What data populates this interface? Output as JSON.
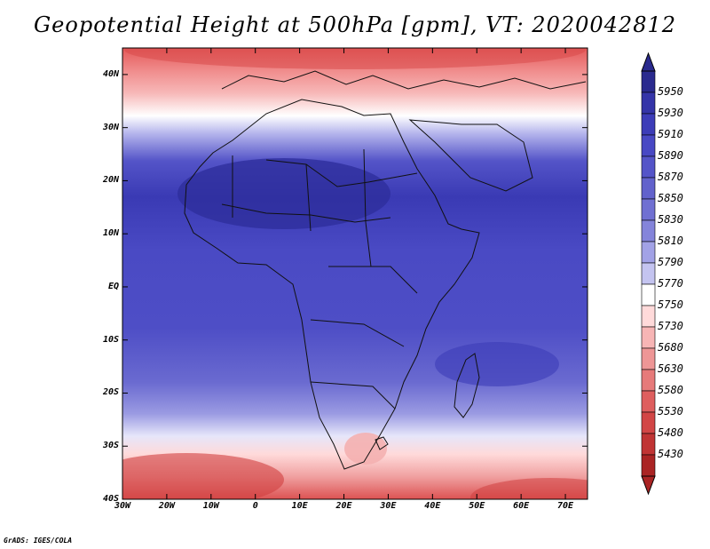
{
  "title": "Geopotential Height at 500hPa [gpm], VT: 2020042812",
  "credit": "GrADS: IGES/COLA",
  "map": {
    "lon_range": [
      -30,
      75
    ],
    "lat_range": [
      -40,
      45
    ],
    "lat_ticks": [
      {
        "value": 40,
        "label": "40N"
      },
      {
        "value": 30,
        "label": "30N"
      },
      {
        "value": 20,
        "label": "20N"
      },
      {
        "value": 10,
        "label": "10N"
      },
      {
        "value": 0,
        "label": "EQ"
      },
      {
        "value": -10,
        "label": "10S"
      },
      {
        "value": -20,
        "label": "20S"
      },
      {
        "value": -30,
        "label": "30S"
      },
      {
        "value": -40,
        "label": "40S"
      }
    ],
    "lon_ticks": [
      {
        "value": -30,
        "label": "30W"
      },
      {
        "value": -20,
        "label": "20W"
      },
      {
        "value": -10,
        "label": "10W"
      },
      {
        "value": 0,
        "label": "0"
      },
      {
        "value": 10,
        "label": "10E"
      },
      {
        "value": 20,
        "label": "20E"
      },
      {
        "value": 30,
        "label": "30E"
      },
      {
        "value": 40,
        "label": "40E"
      },
      {
        "value": 50,
        "label": "50E"
      },
      {
        "value": 60,
        "label": "60E"
      },
      {
        "value": 70,
        "label": "70E"
      }
    ]
  },
  "colorbar": {
    "levels": [
      "5950",
      "5930",
      "5910",
      "5890",
      "5870",
      "5850",
      "5830",
      "5810",
      "5790",
      "5770",
      "5750",
      "5730",
      "5680",
      "5630",
      "5580",
      "5530",
      "5480",
      "5430"
    ],
    "colors": [
      "#2a2a8e",
      "#3434a8",
      "#3c3cb8",
      "#4848c4",
      "#5454c8",
      "#6262cc",
      "#7070d2",
      "#8484da",
      "#a2a2e6",
      "#c4c4f0",
      "#ffffff",
      "#ffdada",
      "#f7b5b5",
      "#ee9696",
      "#e67a7a",
      "#de5e5e",
      "#d24646",
      "#c03434",
      "#aa2424"
    ],
    "top_color": "#2a2a8e",
    "bottom_color": "#aa2424"
  }
}
